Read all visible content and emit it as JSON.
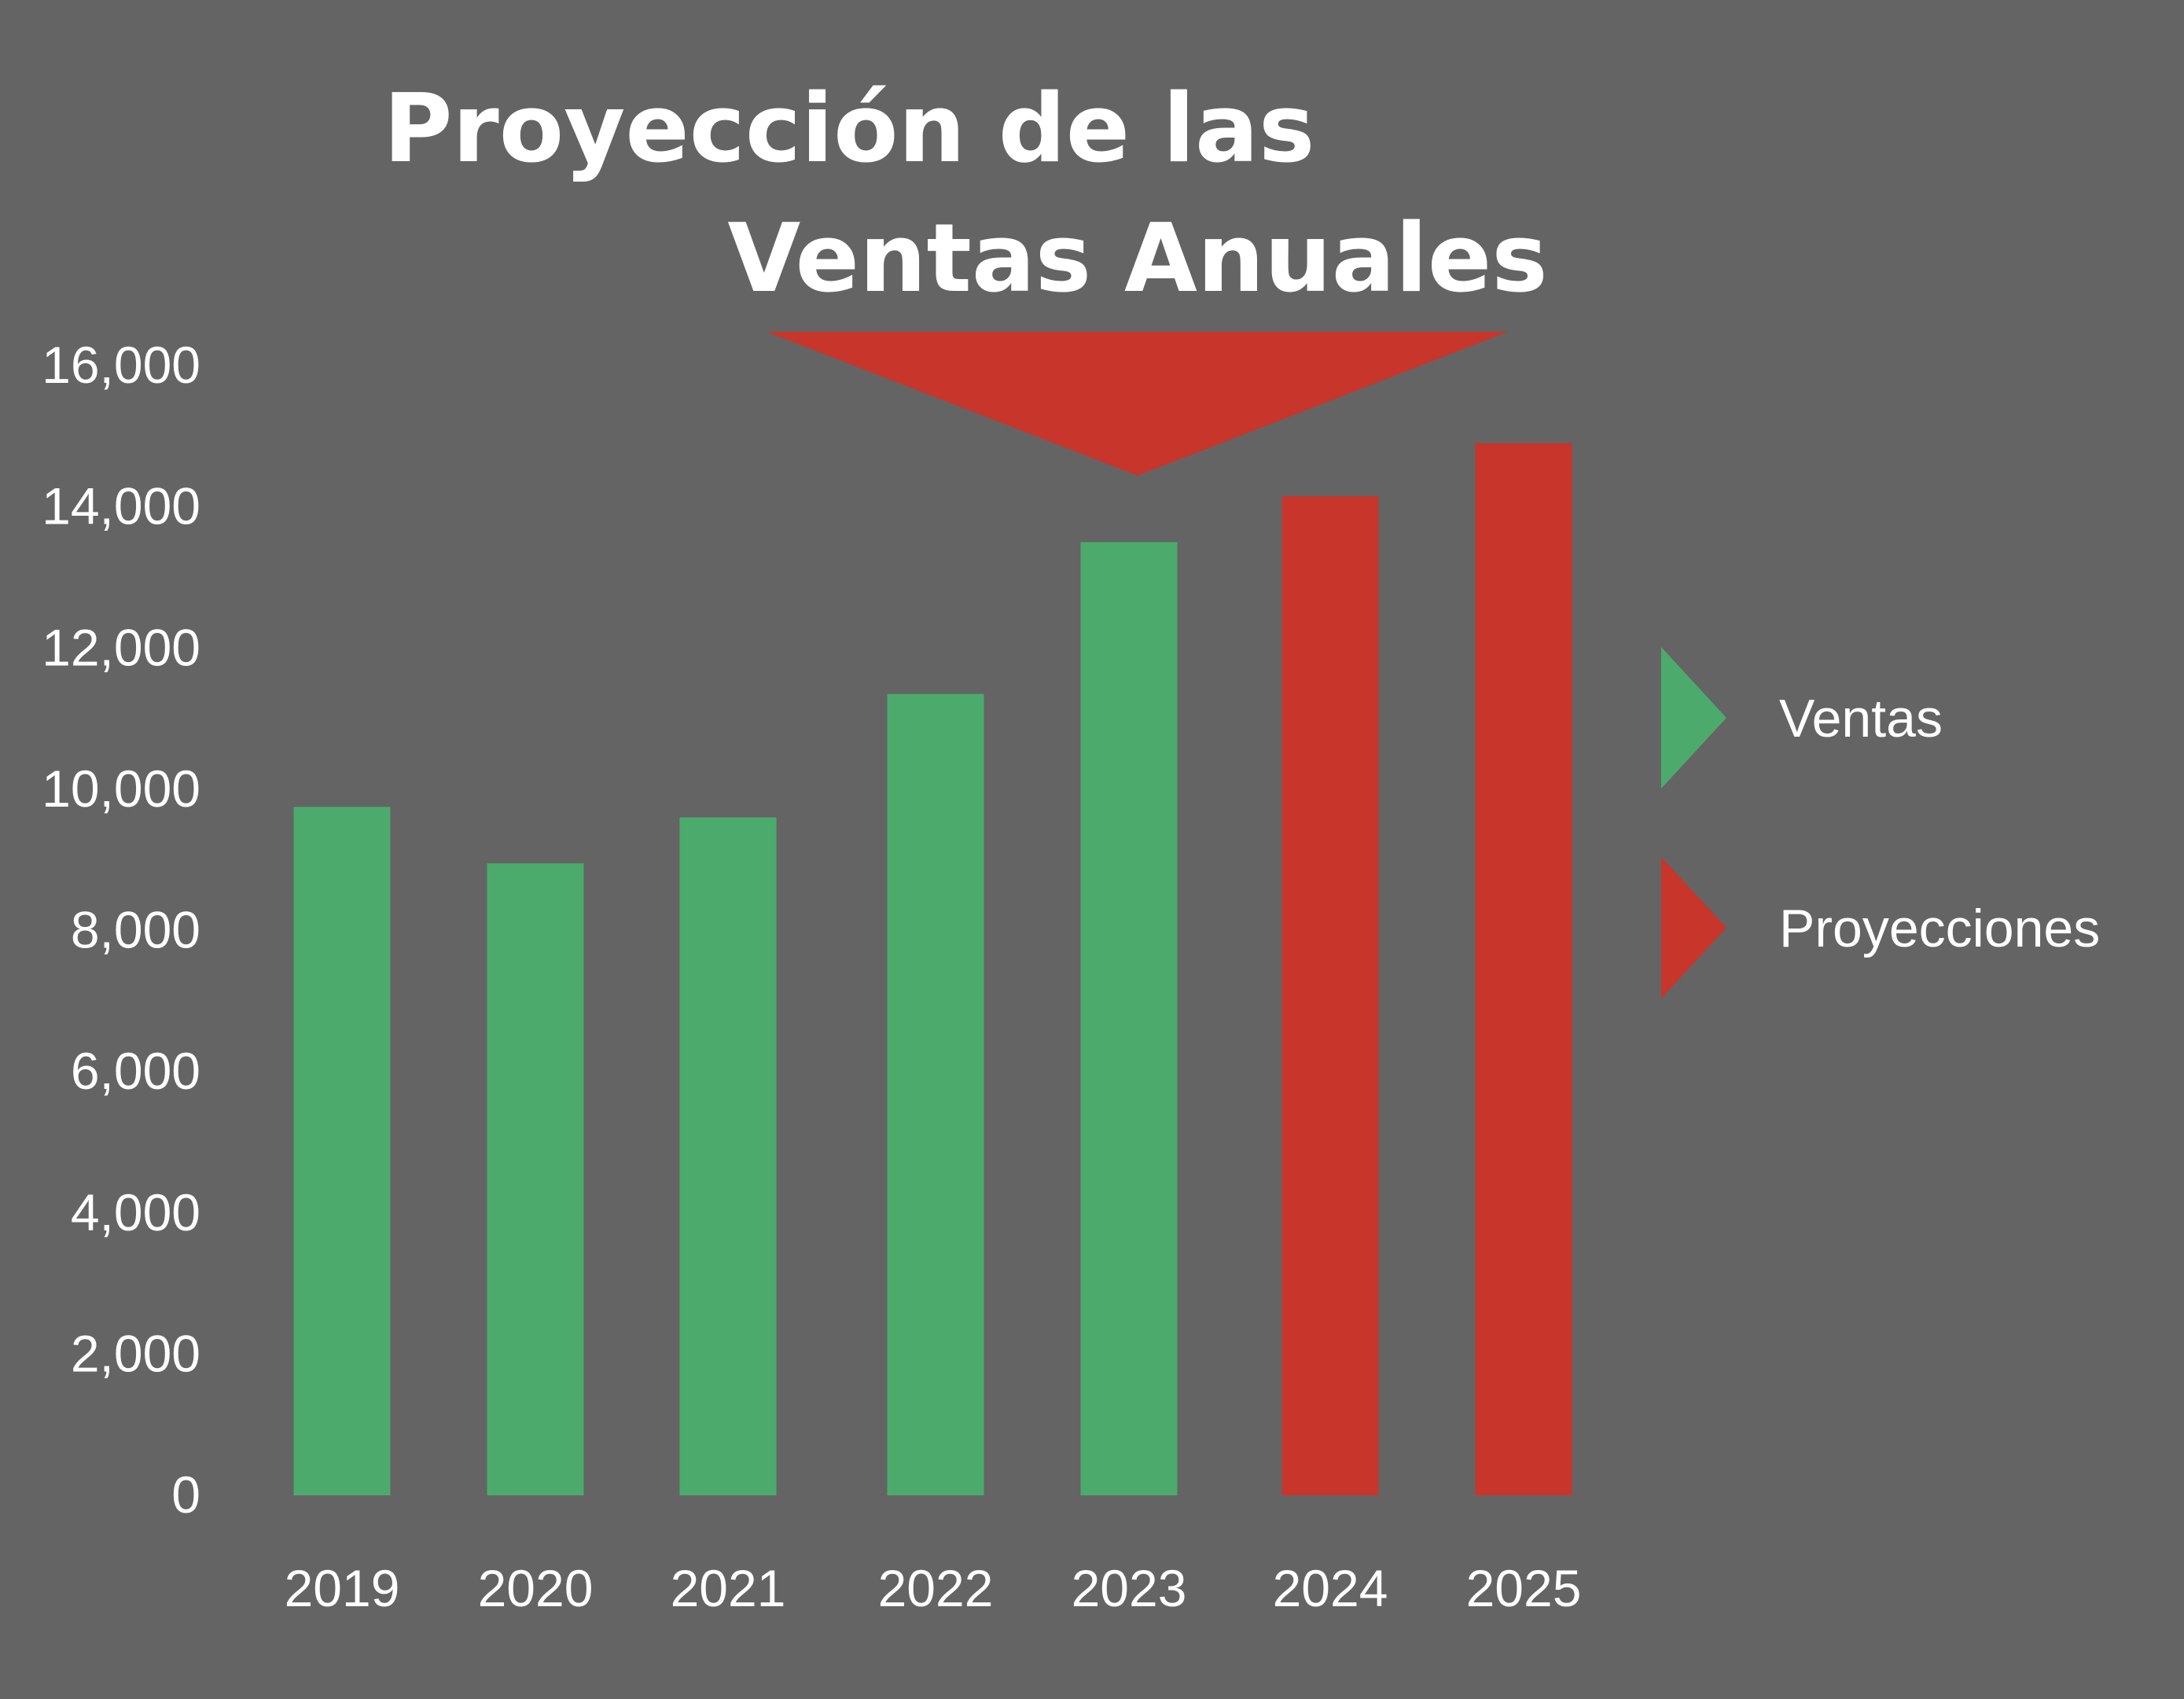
{
  "chart_data": {
    "type": "bar",
    "title_lines": [
      "Proyección de las",
      "Ventas Anuales"
    ],
    "categories": [
      "2019",
      "2020",
      "2021",
      "2022",
      "2023",
      "2024",
      "2025"
    ],
    "series": [
      {
        "name": "Ventas",
        "values": [
          9750,
          8950,
          9600,
          11350,
          13500,
          null,
          null
        ]
      },
      {
        "name": "Proyecciones",
        "values": [
          null,
          null,
          null,
          null,
          null,
          14150,
          14900
        ]
      }
    ],
    "ylim": [
      0,
      16000
    ],
    "yticks": [
      "0",
      "2,000",
      "4,000",
      "6,000",
      "8,000",
      "10,000",
      "12,000",
      "14,000",
      "16,000"
    ],
    "grid": false,
    "legend": {
      "placement": "right",
      "items": [
        {
          "label": "Ventas",
          "color": "#4caa6d"
        },
        {
          "label": "Proyecciones",
          "color": "#c8352b"
        }
      ]
    },
    "colors": {
      "background": "#646464",
      "ventas": "#4caa6d",
      "proyecciones": "#c8352b",
      "text": "#ffffff"
    }
  }
}
